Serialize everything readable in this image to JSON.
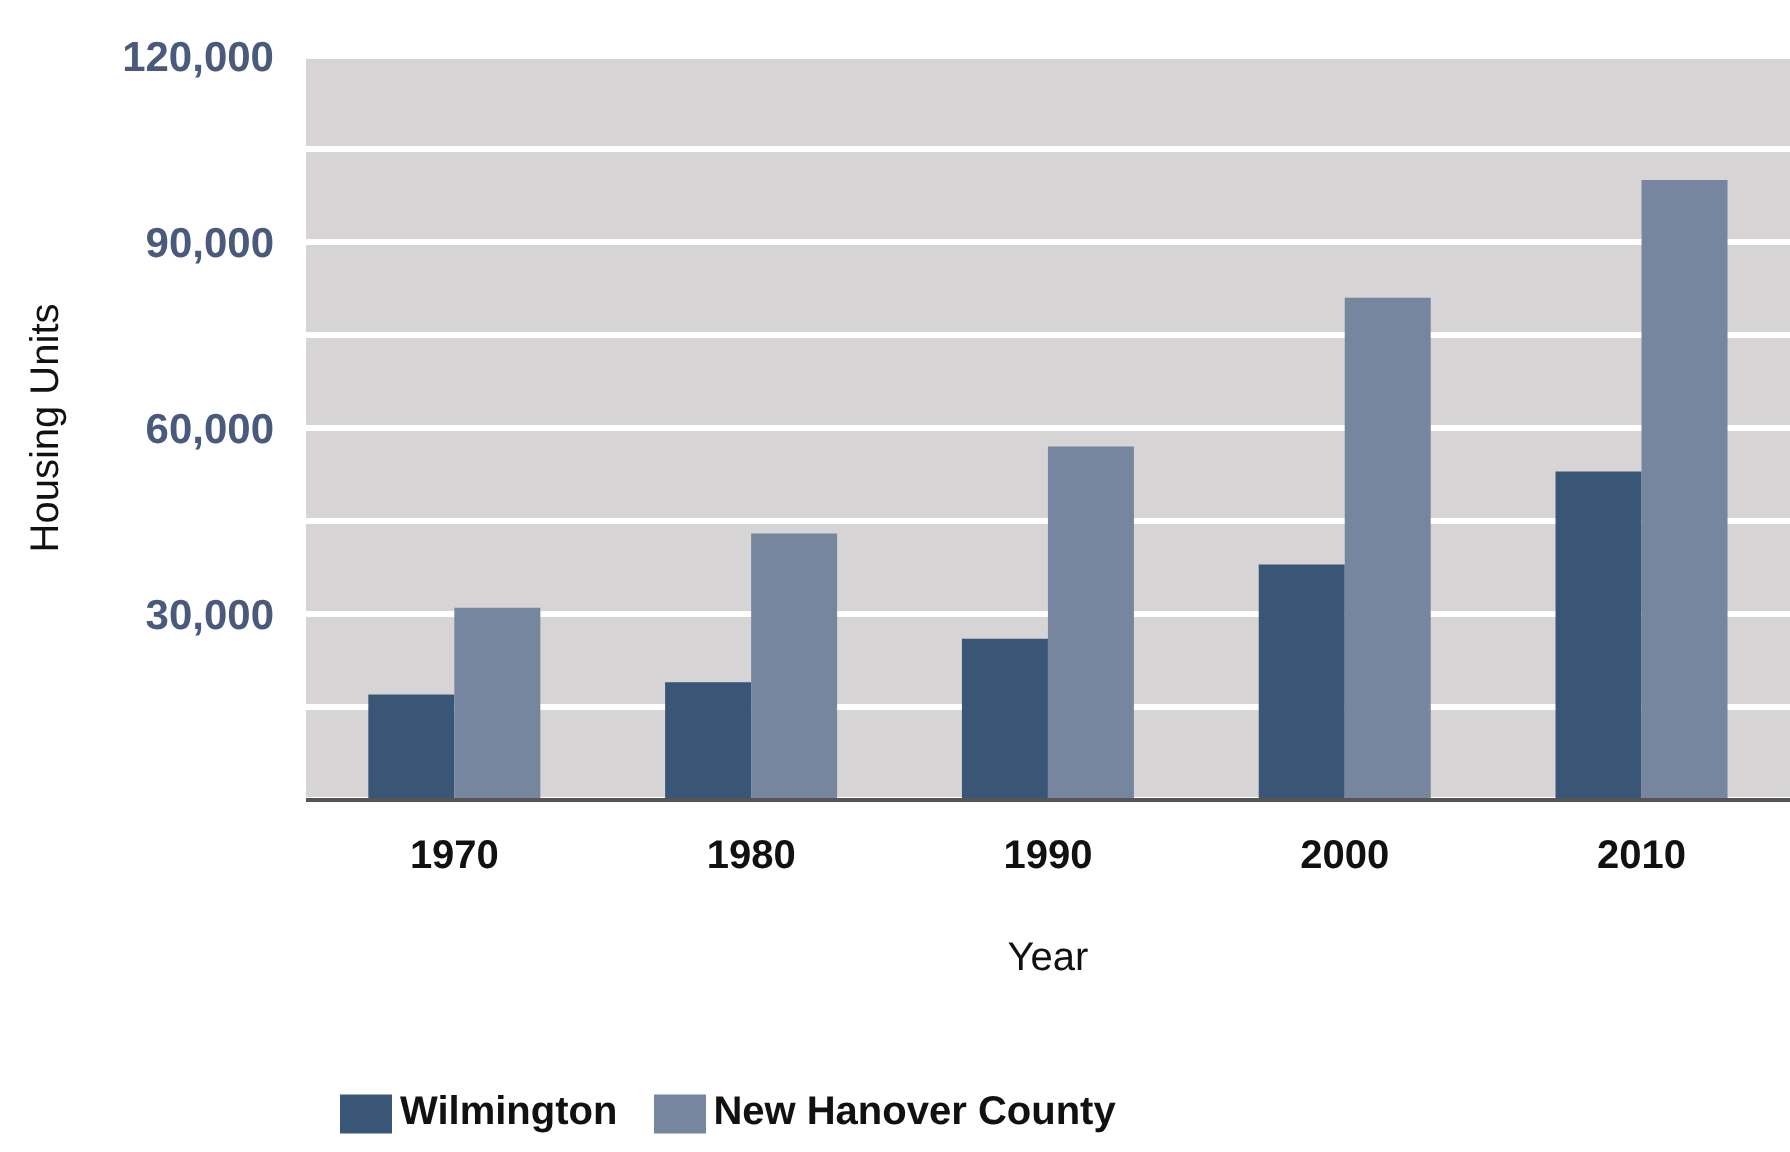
{
  "chart_data": {
    "type": "bar",
    "xlabel": "Year",
    "ylabel": "Housing Units",
    "categories": [
      "1970",
      "1980",
      "1990",
      "2000",
      "2010"
    ],
    "series": [
      {
        "name": "Wilmington",
        "color": "#3a5677",
        "values": [
          17000,
          19000,
          26000,
          38000,
          53000
        ]
      },
      {
        "name": "New Hanover County",
        "color": "#76869f",
        "values": [
          31000,
          43000,
          57000,
          81000,
          100000
        ]
      }
    ],
    "ylim": [
      0,
      120000
    ],
    "yticks": [
      {
        "value": 0,
        "label": null
      },
      {
        "value": 15000,
        "label": null
      },
      {
        "value": 30000,
        "label": "30,000"
      },
      {
        "value": 45000,
        "label": null
      },
      {
        "value": 60000,
        "label": "60,000"
      },
      {
        "value": 75000,
        "label": null
      },
      {
        "value": 90000,
        "label": "90,000"
      },
      {
        "value": 105000,
        "label": null
      },
      {
        "value": 120000,
        "label": "120,000"
      }
    ],
    "grid": "y",
    "legend": "bottom"
  }
}
